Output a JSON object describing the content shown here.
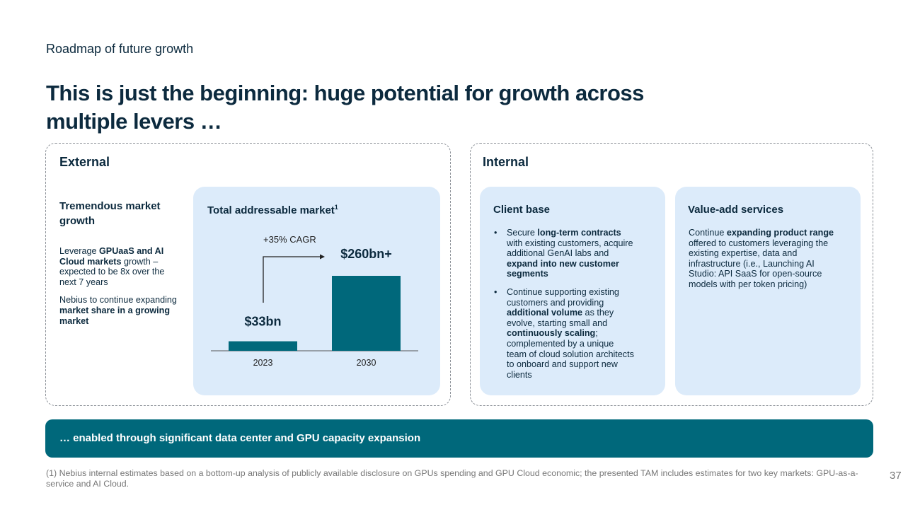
{
  "header": {
    "subtitle": "Roadmap of future growth",
    "title": "This is just the beginning: huge potential for growth across multiple levers …"
  },
  "external": {
    "label": "External",
    "growth_title": "Tremendous market growth",
    "paragraphs": [
      [
        {
          "t": "Leverage ",
          "b": false
        },
        {
          "t": "GPUaaS and AI Cloud markets",
          "b": true
        },
        {
          "t": " growth – expected to be 8x over the next 7 years",
          "b": false
        }
      ],
      [
        {
          "t": "Nebius to continue expanding ",
          "b": false
        },
        {
          "t": "market share in a growing market",
          "b": true
        }
      ]
    ]
  },
  "chart_data": {
    "type": "bar",
    "title": "Total addressable market",
    "title_sup": "1",
    "categories": [
      "2023",
      "2030"
    ],
    "values": [
      33,
      260
    ],
    "value_labels": [
      "$33bn",
      "$260bn+"
    ],
    "annotation": "+35% CAGR",
    "unit": "USD bn",
    "ylim": [
      0,
      260
    ],
    "bar_color": "#00687b"
  },
  "internal": {
    "label": "Internal",
    "client_base": {
      "title": "Client base",
      "bullets": [
        [
          {
            "t": "Secure ",
            "b": false
          },
          {
            "t": "long-term contracts",
            "b": true
          },
          {
            "t": " with existing customers, acquire additional GenAI labs and ",
            "b": false
          },
          {
            "t": "expand into new customer segments",
            "b": true
          }
        ],
        [
          {
            "t": "Continue supporting existing customers and providing ",
            "b": false
          },
          {
            "t": "additional volume",
            "b": true
          },
          {
            "t": " as they evolve, starting small and ",
            "b": false
          },
          {
            "t": "continuously scaling",
            "b": true
          },
          {
            "t": "; complemented by a unique team of cloud solution architects to onboard and support new clients",
            "b": false
          }
        ]
      ]
    },
    "value_add": {
      "title": "Value-add services",
      "paragraph": [
        {
          "t": "Continue ",
          "b": false
        },
        {
          "t": "expanding product range",
          "b": true
        },
        {
          "t": " offered to customers leveraging the existing expertise, data and infrastructure (i.e., Launching AI Studio: API SaaS for open-source models with per token pricing)",
          "b": false
        }
      ]
    }
  },
  "banner": "… enabled through significant data center and GPU capacity expansion",
  "footnote": "(1) Nebius internal estimates based on a bottom-up analysis of publicly available disclosure on GPUs spending and GPU Cloud economic; the presented TAM includes estimates for two key markets: GPU-as-a-service and AI Cloud.",
  "page_number": "37"
}
